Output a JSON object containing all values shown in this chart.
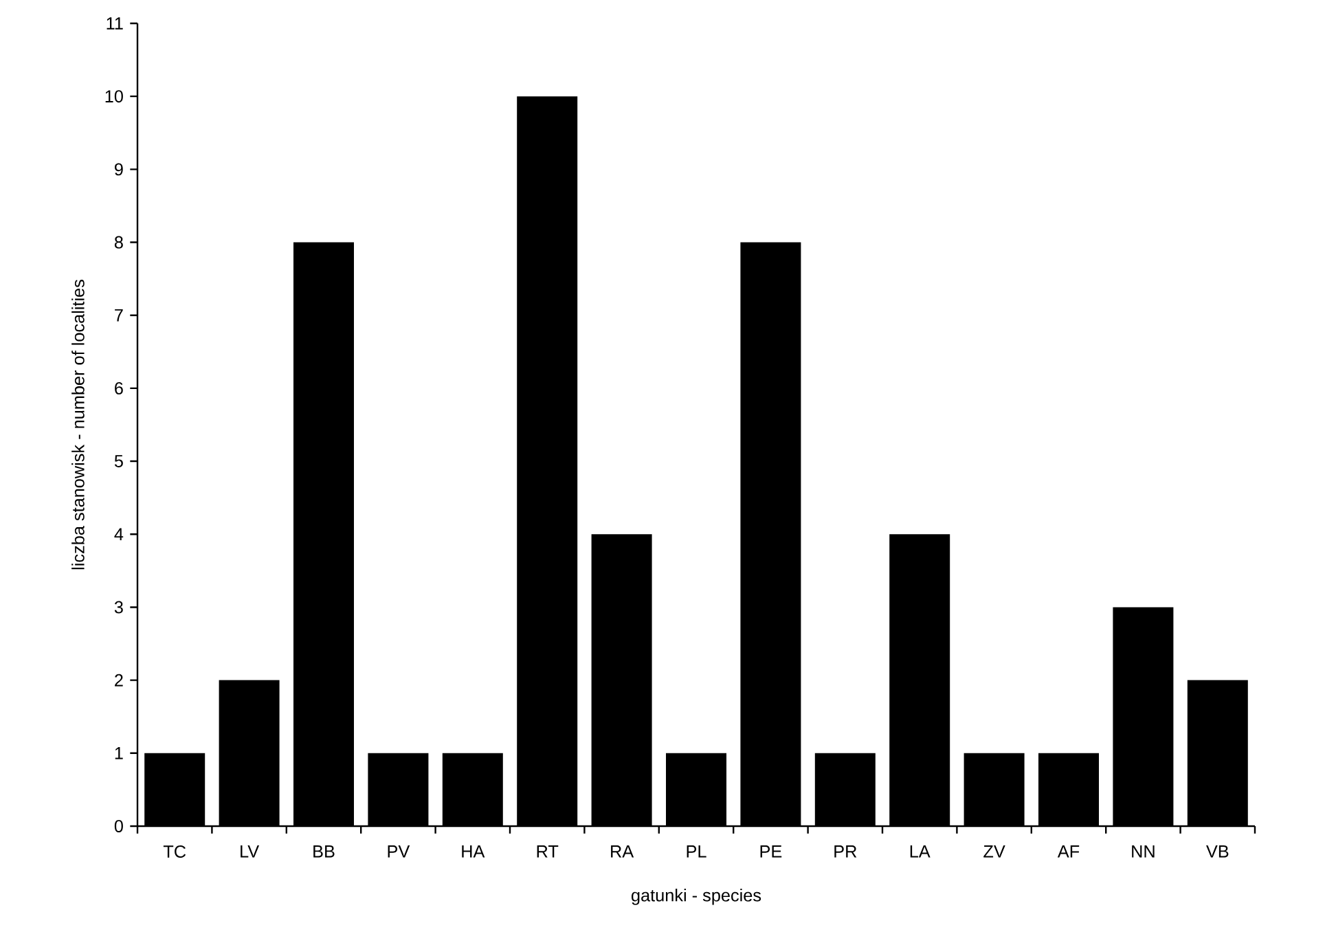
{
  "chart_data": {
    "type": "bar",
    "xlabel": "gatunki - species",
    "ylabel": "liczba stanowisk - number of localities",
    "categories": [
      "TC",
      "LV",
      "BB",
      "PV",
      "HA",
      "RT",
      "RA",
      "PL",
      "PE",
      "PR",
      "LA",
      "ZV",
      "AF",
      "NN",
      "VB"
    ],
    "values": [
      1,
      2,
      8,
      1,
      1,
      10,
      4,
      1,
      8,
      1,
      4,
      1,
      1,
      3,
      2
    ],
    "color": "#000000",
    "ylim": [
      0,
      11
    ],
    "yticks": [
      0,
      1,
      2,
      3,
      4,
      5,
      6,
      7,
      8,
      9,
      10,
      11
    ]
  }
}
